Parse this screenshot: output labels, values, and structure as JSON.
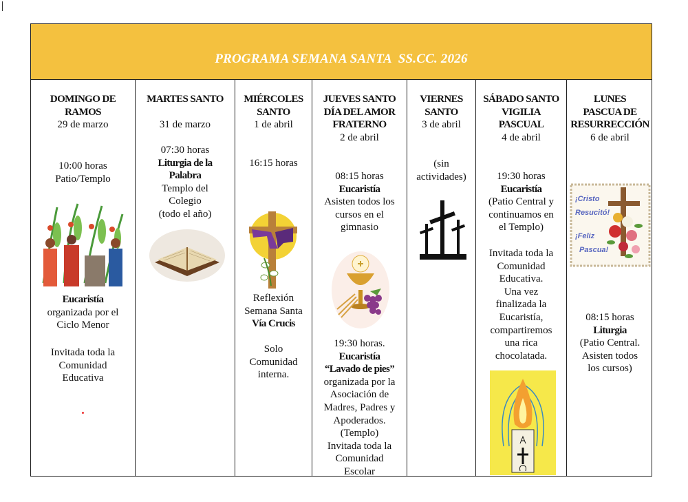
{
  "title": "PROGRAMA SEMANA SANTA  SS.CC. 2026",
  "colors": {
    "banner": "#F4C13F",
    "title_text": "#FFFFFF"
  },
  "columns": [
    {
      "name": "domingo-de-ramos",
      "image": "palm-sunday-illustration",
      "blocks": [
        {
          "lines": [
            {
              "t": "DOMINGO DE",
              "b": true
            },
            {
              "t": "RAMOS",
              "b": true
            },
            {
              "t": "29 de marzo"
            }
          ]
        },
        {
          "lines": [
            {
              "t": "10:00 horas"
            },
            {
              "t": "Patio/Templo"
            }
          ]
        },
        {
          "lines": [
            {
              "t": "Eucaristía",
              "b": true
            },
            {
              "t": "organizada por el"
            },
            {
              "t": "Ciclo Menor"
            }
          ]
        },
        {
          "lines": [
            {
              "t": "Invitada toda la"
            },
            {
              "t": "Comunidad"
            },
            {
              "t": "Educativa"
            }
          ]
        }
      ]
    },
    {
      "name": "martes-santo",
      "image": "open-bible-image",
      "blocks": [
        {
          "lines": [
            {
              "t": "MARTES SANTO",
              "b": true
            }
          ]
        },
        {
          "lines": [
            {
              "t": "31 de marzo"
            }
          ]
        },
        {
          "lines": [
            {
              "t": "07:30 horas"
            },
            {
              "t": "Liturgia de la",
              "b": true
            },
            {
              "t": "Palabra",
              "b": true
            },
            {
              "t": "Templo del"
            },
            {
              "t": "Colegio"
            },
            {
              "t": "(todo el año)"
            }
          ]
        }
      ]
    },
    {
      "name": "miercoles-santo",
      "image": "cross-with-purple-cloth-image",
      "blocks": [
        {
          "lines": [
            {
              "t": "MIÉRCOLES",
              "b": true
            },
            {
              "t": "SANTO",
              "b": true
            },
            {
              "t": "1 de abril"
            }
          ]
        },
        {
          "lines": [
            {
              "t": "16:15 horas"
            }
          ]
        },
        {
          "lines": [
            {
              "t": "Reflexión"
            },
            {
              "t": "Semana Santa"
            },
            {
              "t": "Vía Crucis",
              "b": true
            }
          ]
        },
        {
          "lines": [
            {
              "t": "Solo"
            },
            {
              "t": "Comunidad"
            },
            {
              "t": "interna."
            }
          ]
        }
      ]
    },
    {
      "name": "jueves-santo",
      "image": "chalice-and-grapes-image",
      "blocks": [
        {
          "lines": [
            {
              "t": "JUEVES SANTO",
              "b": true
            },
            {
              "t": "DÍA DEL AMOR",
              "b": true
            },
            {
              "t": "FRATERNO",
              "b": true
            },
            {
              "t": "2 de abril"
            }
          ]
        },
        {
          "lines": [
            {
              "t": "08:15 horas"
            },
            {
              "t": "Eucaristía",
              "b": true
            },
            {
              "t": "Asisten todos los"
            },
            {
              "t": "cursos en el"
            },
            {
              "t": "gimnasio"
            }
          ]
        },
        {
          "lines": [
            {
              "t": "19:30 horas."
            },
            {
              "t": "Eucaristía",
              "b": true
            },
            {
              "t": "“Lavado de pies”",
              "b": true
            },
            {
              "t": "organizada por la"
            },
            {
              "t": "Asociación de"
            },
            {
              "t": "Madres, Padres y"
            },
            {
              "t": "Apoderados."
            },
            {
              "t": "(Templo)"
            },
            {
              "t": "Invitada toda la"
            },
            {
              "t": "Comunidad"
            },
            {
              "t": "Escolar"
            }
          ]
        }
      ]
    },
    {
      "name": "viernes-santo",
      "image": "three-crosses-image",
      "blocks": [
        {
          "lines": [
            {
              "t": "VIERNES",
              "b": true
            },
            {
              "t": "SANTO",
              "b": true
            },
            {
              "t": "3 de abril"
            }
          ]
        },
        {
          "lines": [
            {
              "t": "(sin"
            },
            {
              "t": "actividades)"
            }
          ]
        }
      ]
    },
    {
      "name": "sabado-santo",
      "image": "paschal-candle-image",
      "blocks": [
        {
          "lines": [
            {
              "t": "SÁBADO SANTO",
              "b": true
            },
            {
              "t": "VIGILIA",
              "b": true
            },
            {
              "t": "PASCUAL",
              "b": true
            },
            {
              "t": "4 de abril"
            }
          ]
        },
        {
          "lines": [
            {
              "t": "19:30 horas"
            },
            {
              "t": "Eucaristía",
              "b": true
            },
            {
              "t": "(Patio Central y"
            },
            {
              "t": "continuamos en"
            },
            {
              "t": "el Templo)"
            }
          ]
        },
        {
          "lines": [
            {
              "t": "Invitada toda la"
            },
            {
              "t": "Comunidad"
            },
            {
              "t": "Educativa."
            },
            {
              "t": "Una vez"
            },
            {
              "t": "finalizada la"
            },
            {
              "t": "Eucaristía,"
            },
            {
              "t": "compartiremos"
            },
            {
              "t": "una rica"
            },
            {
              "t": "chocolatada."
            }
          ]
        }
      ]
    },
    {
      "name": "lunes-pascua",
      "image": "easter-card-image",
      "image_text": [
        "¡Cristo",
        "Resucitó!",
        "¡Feliz",
        "Pascua!"
      ],
      "blocks": [
        {
          "lines": [
            {
              "t": "LUNES",
              "b": true
            },
            {
              "t": "PASCUA DE",
              "b": true
            },
            {
              "t": "RESURRECCIÓN",
              "b": true
            },
            {
              "t": "6 de abril"
            }
          ]
        },
        {
          "lines": [
            {
              "t": "08:15 horas"
            },
            {
              "t": "Liturgia",
              "b": true
            },
            {
              "t": "(Patio Central."
            },
            {
              "t": "Asisten todos"
            },
            {
              "t": "los cursos)"
            }
          ]
        }
      ]
    }
  ]
}
